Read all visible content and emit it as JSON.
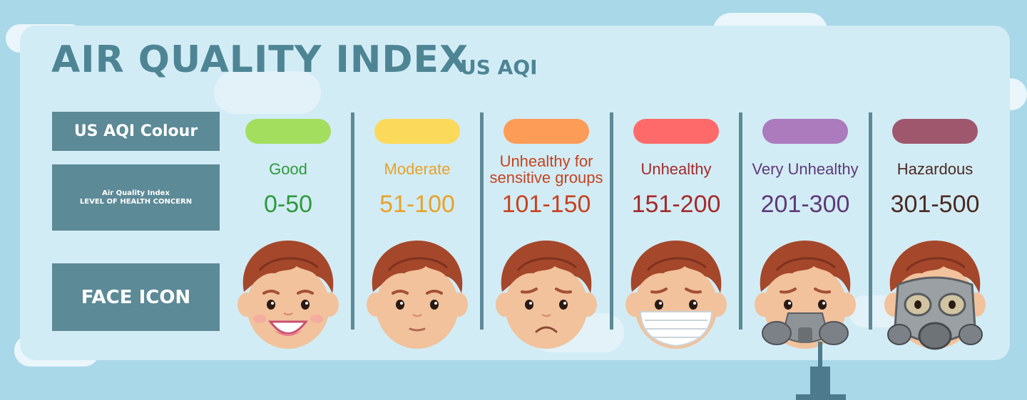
{
  "title": "AIR QUALITY INDEX",
  "subtitle": "US AQI",
  "row_labels": {
    "colour": "US AQI Colour",
    "level_line1": "Air Quality Index",
    "level_line2": "LEVEL OF HEALTH CONCERN",
    "face": "FACE ICON"
  },
  "categories": [
    {
      "level_line1": "Good",
      "level_line2": "",
      "range": "0-50",
      "colour": "#a3de5f",
      "text_colour": "#2e9a3c",
      "face": "happy-face-icon"
    },
    {
      "level_line1": "Moderate",
      "level_line2": "",
      "range": "51-100",
      "colour": "#fbd95a",
      "text_colour": "#e8a229",
      "face": "neutral-face-icon"
    },
    {
      "level_line1": "Unhealthy for",
      "level_line2": "sensitive groups",
      "range": "101-150",
      "colour": "#fd9c56",
      "text_colour": "#c6431f",
      "face": "sad-face-icon"
    },
    {
      "level_line1": "Unhealthy",
      "level_line2": "",
      "range": "151-200",
      "colour": "#fe6a6a",
      "text_colour": "#a42a2a",
      "face": "face-mask-icon"
    },
    {
      "level_line1": "Very Unhealthy",
      "level_line2": "",
      "range": "201-300",
      "colour": "#ab7bbd",
      "text_colour": "#5e3a78",
      "face": "respirator-face-icon"
    },
    {
      "level_line1": "Hazardous",
      "level_line2": "",
      "range": "301-500",
      "colour": "#9e576c",
      "text_colour": "#4a2a22",
      "face": "gas-mask-face-icon"
    }
  ]
}
